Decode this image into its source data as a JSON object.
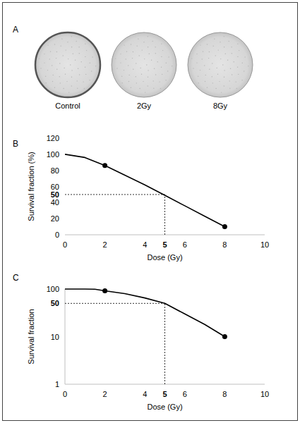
{
  "image_panel": {
    "panel_label": "A",
    "labels": [
      "Control",
      "2Gy",
      "8Gy"
    ]
  },
  "chart_data": [
    {
      "type": "line",
      "panel_label": "B",
      "x_label": "Dose (Gy)",
      "y_label": "Survival fraction (%)",
      "xlim": [
        0,
        10
      ],
      "xticks": [
        0,
        2,
        4,
        5,
        6,
        8,
        10
      ],
      "ylim": [
        0,
        120
      ],
      "yticks": [
        0,
        20,
        40,
        50,
        60,
        80,
        100,
        120
      ],
      "grid": false,
      "tick_labels": true,
      "reference": {
        "x": 5,
        "y": 50
      },
      "series": [
        {
          "type": "line",
          "color": "#000000",
          "x": [
            0,
            1,
            2,
            3,
            4,
            5,
            6,
            7,
            8
          ],
          "values": [
            100,
            96,
            86,
            74,
            62,
            49,
            36,
            23,
            10
          ]
        },
        {
          "type": "scatter",
          "color": "#000000",
          "marker": "circle",
          "x": [
            2,
            8
          ],
          "values": [
            86,
            10
          ]
        }
      ]
    },
    {
      "type": "line",
      "panel_label": "C",
      "x_label": "Dose (Gy)",
      "y_label": "Survival fraction",
      "log": "y",
      "xlim": [
        0,
        10
      ],
      "xticks": [
        0,
        2,
        4,
        5,
        6,
        8,
        10
      ],
      "ylim": [
        1,
        100
      ],
      "yticks": [
        1,
        10,
        50,
        100
      ],
      "grid": false,
      "tick_labels": true,
      "reference": {
        "x": 5,
        "y": 50
      },
      "series": [
        {
          "type": "line",
          "color": "#000000",
          "x": [
            0,
            1,
            1.5,
            2,
            3,
            4,
            5,
            6,
            7,
            8
          ],
          "values": [
            100,
            100,
            99,
            92,
            80,
            65,
            50,
            30,
            18,
            10
          ]
        },
        {
          "type": "scatter",
          "color": "#000000",
          "marker": "circle",
          "x": [
            2,
            8
          ],
          "values": [
            92,
            10
          ]
        }
      ]
    }
  ]
}
